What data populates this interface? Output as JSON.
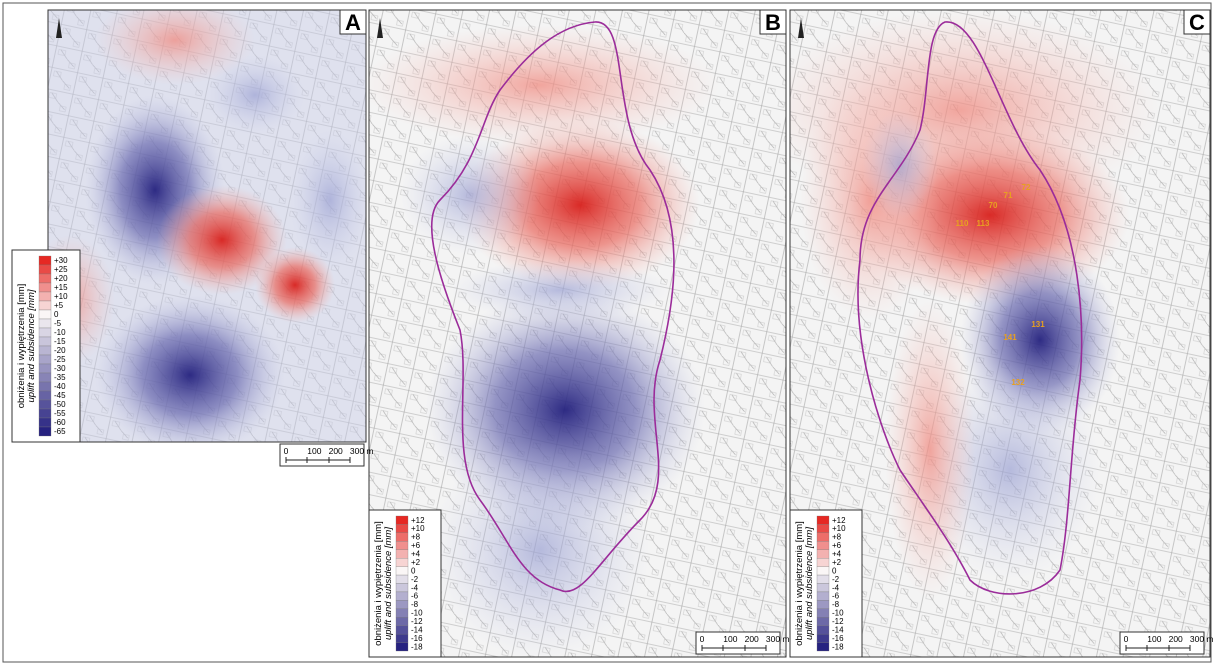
{
  "panels": [
    {
      "letter": "A",
      "legend": {
        "title": "obniżenia i wypiętrzenia [mm]",
        "subtitle": "uplift and subsidence [mm]",
        "labels": [
          "+30",
          "+25",
          "+20",
          "+15",
          "+10",
          "+5",
          "0",
          "-5",
          "-10",
          "-15",
          "-20",
          "-25",
          "-30",
          "-35",
          "-40",
          "-45",
          "-50",
          "-55",
          "-60",
          "-65"
        ]
      },
      "scale": [
        "0",
        "100",
        "200",
        "300 m"
      ]
    },
    {
      "letter": "B",
      "legend": {
        "title": "obniżenia i wypiętrzenia [mm]",
        "subtitle": "uplift and subsidence [mm]",
        "labels": [
          "+12",
          "+10",
          "+8",
          "+6",
          "+4",
          "+2",
          "0",
          "-2",
          "-4",
          "-6",
          "-8",
          "-10",
          "-12",
          "-14",
          "-16",
          "-18"
        ]
      },
      "scale": [
        "0",
        "100",
        "200",
        "300 m"
      ]
    },
    {
      "letter": "C",
      "legend": {
        "title": "obniżenia i wypiętrzenia [mm]",
        "subtitle": "uplift and subsidence [mm]",
        "labels": [
          "+12",
          "+10",
          "+8",
          "+6",
          "+4",
          "+2",
          "0",
          "-2",
          "-4",
          "-6",
          "-8",
          "-10",
          "-12",
          "-14",
          "-16",
          "-18"
        ]
      },
      "scale": [
        "0",
        "100",
        "200",
        "300 m"
      ],
      "points": [
        "72",
        "71",
        "70",
        "110",
        "113",
        "131",
        "141",
        "132"
      ]
    }
  ]
}
